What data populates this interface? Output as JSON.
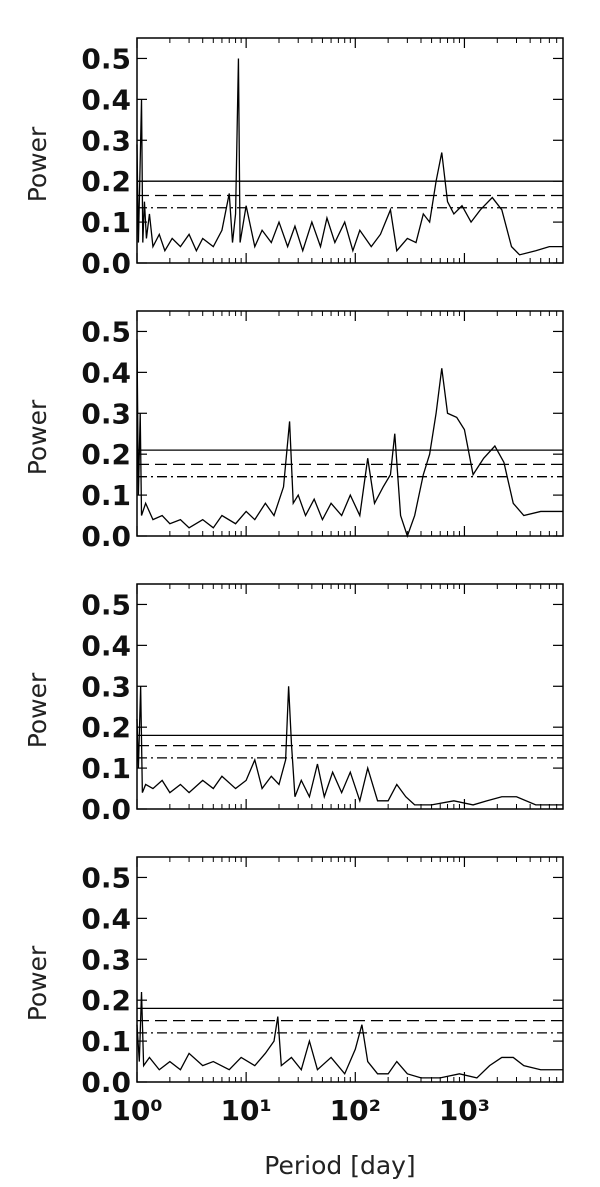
{
  "chart_data": [
    {
      "type": "line",
      "ylabel": "Power",
      "xscale": "log",
      "color": "#000000",
      "xlim": [
        1,
        8000
      ],
      "ylim": [
        0,
        0.55
      ],
      "xticks": [
        1,
        10,
        100,
        1000
      ],
      "xminorticks": [
        2,
        3,
        4,
        5,
        6,
        7,
        8,
        9,
        20,
        30,
        40,
        50,
        60,
        70,
        80,
        90,
        200,
        300,
        400,
        500,
        600,
        700,
        800,
        900,
        2000,
        3000,
        4000,
        5000,
        6000,
        7000,
        8000
      ],
      "yticks": [
        {
          "value": 0,
          "label": "0.0"
        },
        0.1,
        0.2,
        0.3,
        0.4,
        0.5
      ],
      "hlines": [
        {
          "value": 0.2,
          "style": "solid"
        },
        {
          "value": 0.165,
          "style": "dashed"
        },
        {
          "value": 0.135,
          "style": "dashdot"
        }
      ],
      "x": [
        1.0,
        1.03,
        1.06,
        1.1,
        1.13,
        1.17,
        1.22,
        1.3,
        1.4,
        1.6,
        1.8,
        2.1,
        2.5,
        3,
        3.5,
        4,
        5,
        6,
        7,
        7.5,
        8,
        8.5,
        8.8,
        10,
        12,
        14,
        17,
        20,
        24,
        28,
        33,
        40,
        48,
        55,
        65,
        80,
        95,
        110,
        140,
        170,
        210,
        240,
        300,
        360,
        420,
        480,
        550,
        620,
        700,
        800,
        950,
        1150,
        1400,
        1800,
        2200,
        2700,
        3200,
        4500,
        6000,
        8000
      ],
      "values": [
        0.29,
        0.05,
        0.2,
        0.4,
        0.05,
        0.15,
        0.06,
        0.12,
        0.04,
        0.07,
        0.03,
        0.06,
        0.04,
        0.07,
        0.03,
        0.06,
        0.04,
        0.08,
        0.17,
        0.05,
        0.12,
        0.5,
        0.05,
        0.14,
        0.04,
        0.08,
        0.05,
        0.1,
        0.04,
        0.09,
        0.03,
        0.1,
        0.04,
        0.11,
        0.05,
        0.1,
        0.03,
        0.08,
        0.04,
        0.07,
        0.13,
        0.03,
        0.06,
        0.05,
        0.12,
        0.1,
        0.2,
        0.27,
        0.15,
        0.12,
        0.14,
        0.1,
        0.13,
        0.16,
        0.13,
        0.04,
        0.02,
        0.03,
        0.04,
        0.04
      ]
    },
    {
      "type": "line",
      "ylabel": "Power",
      "xscale": "log",
      "color": "#000000",
      "xlim": [
        1,
        8000
      ],
      "ylim": [
        0,
        0.55
      ],
      "xticks": [
        1,
        10,
        100,
        1000
      ],
      "xminorticks": [
        2,
        3,
        4,
        5,
        6,
        7,
        8,
        9,
        20,
        30,
        40,
        50,
        60,
        70,
        80,
        90,
        200,
        300,
        400,
        500,
        600,
        700,
        800,
        900,
        2000,
        3000,
        4000,
        5000,
        6000,
        7000,
        8000
      ],
      "yticks": [
        {
          "value": 0,
          "label": "0.0"
        },
        0.1,
        0.2,
        0.3,
        0.4,
        0.5
      ],
      "hlines": [
        {
          "value": 0.21,
          "style": "solid"
        },
        {
          "value": 0.175,
          "style": "dashed"
        },
        {
          "value": 0.145,
          "style": "dashdot"
        }
      ],
      "x": [
        1.0,
        1.03,
        1.07,
        1.1,
        1.2,
        1.4,
        1.7,
        2,
        2.5,
        3,
        4,
        5,
        6,
        8,
        10,
        12,
        15,
        18,
        22,
        25,
        27,
        30,
        35,
        42,
        50,
        60,
        75,
        90,
        110,
        130,
        150,
        180,
        210,
        230,
        260,
        300,
        350,
        420,
        480,
        550,
        620,
        700,
        850,
        1000,
        1200,
        1500,
        1900,
        2300,
        2800,
        3500,
        5000,
        8000
      ],
      "values": [
        0.48,
        0.1,
        0.3,
        0.05,
        0.08,
        0.04,
        0.05,
        0.03,
        0.04,
        0.02,
        0.04,
        0.02,
        0.05,
        0.03,
        0.06,
        0.04,
        0.08,
        0.05,
        0.12,
        0.28,
        0.08,
        0.1,
        0.05,
        0.09,
        0.04,
        0.08,
        0.05,
        0.1,
        0.05,
        0.19,
        0.08,
        0.12,
        0.15,
        0.25,
        0.05,
        0.0,
        0.05,
        0.15,
        0.2,
        0.3,
        0.41,
        0.3,
        0.29,
        0.26,
        0.15,
        0.19,
        0.22,
        0.18,
        0.08,
        0.05,
        0.06,
        0.06
      ]
    },
    {
      "type": "line",
      "ylabel": "Power",
      "xscale": "log",
      "color": "#000000",
      "xlim": [
        1,
        8000
      ],
      "ylim": [
        0,
        0.55
      ],
      "xticks": [
        1,
        10,
        100,
        1000
      ],
      "xminorticks": [
        2,
        3,
        4,
        5,
        6,
        7,
        8,
        9,
        20,
        30,
        40,
        50,
        60,
        70,
        80,
        90,
        200,
        300,
        400,
        500,
        600,
        700,
        800,
        900,
        2000,
        3000,
        4000,
        5000,
        6000,
        7000,
        8000
      ],
      "yticks": [
        {
          "value": 0,
          "label": "0.0"
        },
        0.1,
        0.2,
        0.3,
        0.4,
        0.5
      ],
      "hlines": [
        {
          "value": 0.18,
          "style": "solid"
        },
        {
          "value": 0.155,
          "style": "dashed"
        },
        {
          "value": 0.125,
          "style": "dashdot"
        }
      ],
      "x": [
        1.0,
        1.03,
        1.08,
        1.12,
        1.2,
        1.4,
        1.7,
        2,
        2.5,
        3,
        4,
        5,
        6,
        8,
        10,
        12,
        14,
        17,
        20,
        23,
        24.5,
        26,
        28,
        32,
        38,
        45,
        52,
        62,
        75,
        90,
        110,
        130,
        160,
        200,
        240,
        290,
        350,
        500,
        800,
        1200,
        1600,
        2200,
        3000,
        4500,
        8000
      ],
      "values": [
        0.22,
        0.1,
        0.3,
        0.04,
        0.06,
        0.05,
        0.07,
        0.04,
        0.06,
        0.04,
        0.07,
        0.05,
        0.08,
        0.05,
        0.07,
        0.12,
        0.05,
        0.08,
        0.06,
        0.12,
        0.3,
        0.16,
        0.03,
        0.07,
        0.03,
        0.11,
        0.03,
        0.09,
        0.04,
        0.09,
        0.02,
        0.1,
        0.02,
        0.02,
        0.06,
        0.03,
        0.01,
        0.01,
        0.02,
        0.01,
        0.02,
        0.03,
        0.03,
        0.01,
        0.01
      ]
    },
    {
      "type": "line",
      "ylabel": "Power",
      "xlabel": "Period [day]",
      "xscale": "log",
      "color": "#000000",
      "xlim": [
        1,
        8000
      ],
      "ylim": [
        0,
        0.55
      ],
      "xticks": [
        {
          "value": 1,
          "label": "10⁰"
        },
        {
          "value": 10,
          "label": "10¹"
        },
        {
          "value": 100,
          "label": "10²"
        },
        {
          "value": 1000,
          "label": "10³"
        }
      ],
      "xminorticks": [
        2,
        3,
        4,
        5,
        6,
        7,
        8,
        9,
        20,
        30,
        40,
        50,
        60,
        70,
        80,
        90,
        200,
        300,
        400,
        500,
        600,
        700,
        800,
        900,
        2000,
        3000,
        4000,
        5000,
        6000,
        7000,
        8000
      ],
      "yticks": [
        {
          "value": 0,
          "label": "0.0"
        },
        0.1,
        0.2,
        0.3,
        0.4,
        0.5
      ],
      "hlines": [
        {
          "value": 0.18,
          "style": "solid"
        },
        {
          "value": 0.15,
          "style": "dashed"
        },
        {
          "value": 0.12,
          "style": "dashdot"
        }
      ],
      "x": [
        1.0,
        1.05,
        1.1,
        1.15,
        1.3,
        1.6,
        2,
        2.5,
        3,
        4,
        5,
        7,
        9,
        12,
        15,
        18,
        19.5,
        21,
        26,
        32,
        38,
        45,
        60,
        80,
        100,
        115,
        130,
        160,
        200,
        240,
        300,
        400,
        600,
        900,
        1300,
        1700,
        2200,
        2800,
        3500,
        5000,
        8000
      ],
      "values": [
        0.14,
        0.05,
        0.22,
        0.04,
        0.06,
        0.03,
        0.05,
        0.03,
        0.07,
        0.04,
        0.05,
        0.03,
        0.06,
        0.04,
        0.07,
        0.1,
        0.16,
        0.04,
        0.06,
        0.03,
        0.1,
        0.03,
        0.06,
        0.02,
        0.08,
        0.14,
        0.05,
        0.02,
        0.02,
        0.05,
        0.02,
        0.01,
        0.01,
        0.02,
        0.01,
        0.04,
        0.06,
        0.06,
        0.04,
        0.03,
        0.03
      ]
    }
  ]
}
